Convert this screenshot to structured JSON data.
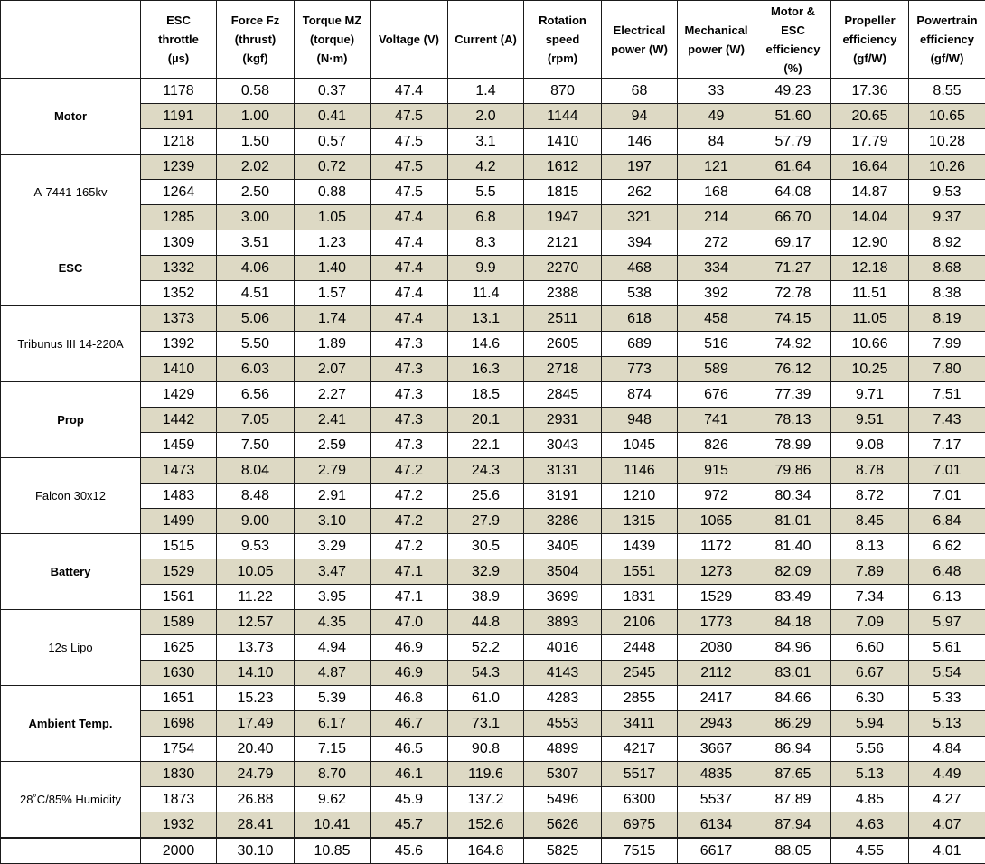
{
  "headers": [
    "",
    "ESC\nthrottle\n(µs)",
    "Force Fz\n(thrust)\n(kgf)",
    "Torque MZ\n(torque)\n(N·m)",
    "Voltage (V)",
    "Current (A)",
    "Rotation\nspeed\n(rpm)",
    "Electrical\npower (W)",
    "Mechanical\npower (W)",
    "Motor &\nESC\nefficiency\n(%)",
    "Propeller\nefficiency\n(gf/W)",
    "Powertrain\nefficiency\n(gf/W)"
  ],
  "groups": [
    {
      "label": "Motor",
      "bold": true
    },
    {
      "label": "A-7441-165kv",
      "bold": false
    },
    {
      "label": "ESC",
      "bold": true
    },
    {
      "label": "Tribunus III 14-220A",
      "bold": false
    },
    {
      "label": "Prop",
      "bold": true
    },
    {
      "label": "Falcon 30x12",
      "bold": false
    },
    {
      "label": "Battery",
      "bold": true
    },
    {
      "label": "12s Lipo",
      "bold": false
    },
    {
      "label": "Ambient Temp.",
      "bold": true
    },
    {
      "label": "28˚C/85% Humidity",
      "bold": false
    },
    {
      "label": "",
      "bold": false
    }
  ],
  "rows": [
    [
      "1178",
      "0.58",
      "0.37",
      "47.4",
      "1.4",
      "870",
      "68",
      "33",
      "49.23",
      "17.36",
      "8.55"
    ],
    [
      "1191",
      "1.00",
      "0.41",
      "47.5",
      "2.0",
      "1144",
      "94",
      "49",
      "51.60",
      "20.65",
      "10.65"
    ],
    [
      "1218",
      "1.50",
      "0.57",
      "47.5",
      "3.1",
      "1410",
      "146",
      "84",
      "57.79",
      "17.79",
      "10.28"
    ],
    [
      "1239",
      "2.02",
      "0.72",
      "47.5",
      "4.2",
      "1612",
      "197",
      "121",
      "61.64",
      "16.64",
      "10.26"
    ],
    [
      "1264",
      "2.50",
      "0.88",
      "47.5",
      "5.5",
      "1815",
      "262",
      "168",
      "64.08",
      "14.87",
      "9.53"
    ],
    [
      "1285",
      "3.00",
      "1.05",
      "47.4",
      "6.8",
      "1947",
      "321",
      "214",
      "66.70",
      "14.04",
      "9.37"
    ],
    [
      "1309",
      "3.51",
      "1.23",
      "47.4",
      "8.3",
      "2121",
      "394",
      "272",
      "69.17",
      "12.90",
      "8.92"
    ],
    [
      "1332",
      "4.06",
      "1.40",
      "47.4",
      "9.9",
      "2270",
      "468",
      "334",
      "71.27",
      "12.18",
      "8.68"
    ],
    [
      "1352",
      "4.51",
      "1.57",
      "47.4",
      "11.4",
      "2388",
      "538",
      "392",
      "72.78",
      "11.51",
      "8.38"
    ],
    [
      "1373",
      "5.06",
      "1.74",
      "47.4",
      "13.1",
      "2511",
      "618",
      "458",
      "74.15",
      "11.05",
      "8.19"
    ],
    [
      "1392",
      "5.50",
      "1.89",
      "47.3",
      "14.6",
      "2605",
      "689",
      "516",
      "74.92",
      "10.66",
      "7.99"
    ],
    [
      "1410",
      "6.03",
      "2.07",
      "47.3",
      "16.3",
      "2718",
      "773",
      "589",
      "76.12",
      "10.25",
      "7.80"
    ],
    [
      "1429",
      "6.56",
      "2.27",
      "47.3",
      "18.5",
      "2845",
      "874",
      "676",
      "77.39",
      "9.71",
      "7.51"
    ],
    [
      "1442",
      "7.05",
      "2.41",
      "47.3",
      "20.1",
      "2931",
      "948",
      "741",
      "78.13",
      "9.51",
      "7.43"
    ],
    [
      "1459",
      "7.50",
      "2.59",
      "47.3",
      "22.1",
      "3043",
      "1045",
      "826",
      "78.99",
      "9.08",
      "7.17"
    ],
    [
      "1473",
      "8.04",
      "2.79",
      "47.2",
      "24.3",
      "3131",
      "1146",
      "915",
      "79.86",
      "8.78",
      "7.01"
    ],
    [
      "1483",
      "8.48",
      "2.91",
      "47.2",
      "25.6",
      "3191",
      "1210",
      "972",
      "80.34",
      "8.72",
      "7.01"
    ],
    [
      "1499",
      "9.00",
      "3.10",
      "47.2",
      "27.9",
      "3286",
      "1315",
      "1065",
      "81.01",
      "8.45",
      "6.84"
    ],
    [
      "1515",
      "9.53",
      "3.29",
      "47.2",
      "30.5",
      "3405",
      "1439",
      "1172",
      "81.40",
      "8.13",
      "6.62"
    ],
    [
      "1529",
      "10.05",
      "3.47",
      "47.1",
      "32.9",
      "3504",
      "1551",
      "1273",
      "82.09",
      "7.89",
      "6.48"
    ],
    [
      "1561",
      "11.22",
      "3.95",
      "47.1",
      "38.9",
      "3699",
      "1831",
      "1529",
      "83.49",
      "7.34",
      "6.13"
    ],
    [
      "1589",
      "12.57",
      "4.35",
      "47.0",
      "44.8",
      "3893",
      "2106",
      "1773",
      "84.18",
      "7.09",
      "5.97"
    ],
    [
      "1625",
      "13.73",
      "4.94",
      "46.9",
      "52.2",
      "4016",
      "2448",
      "2080",
      "84.96",
      "6.60",
      "5.61"
    ],
    [
      "1630",
      "14.10",
      "4.87",
      "46.9",
      "54.3",
      "4143",
      "2545",
      "2112",
      "83.01",
      "6.67",
      "5.54"
    ],
    [
      "1651",
      "15.23",
      "5.39",
      "46.8",
      "61.0",
      "4283",
      "2855",
      "2417",
      "84.66",
      "6.30",
      "5.33"
    ],
    [
      "1698",
      "17.49",
      "6.17",
      "46.7",
      "73.1",
      "4553",
      "3411",
      "2943",
      "86.29",
      "5.94",
      "5.13"
    ],
    [
      "1754",
      "20.40",
      "7.15",
      "46.5",
      "90.8",
      "4899",
      "4217",
      "3667",
      "86.94",
      "5.56",
      "4.84"
    ],
    [
      "1830",
      "24.79",
      "8.70",
      "46.1",
      "119.6",
      "5307",
      "5517",
      "4835",
      "87.65",
      "5.13",
      "4.49"
    ],
    [
      "1873",
      "26.88",
      "9.62",
      "45.9",
      "137.2",
      "5496",
      "6300",
      "5537",
      "87.89",
      "4.85",
      "4.27"
    ],
    [
      "1932",
      "28.41",
      "10.41",
      "45.7",
      "152.6",
      "5626",
      "6975",
      "6134",
      "87.94",
      "4.63",
      "4.07"
    ],
    [
      "2000",
      "30.10",
      "10.85",
      "45.6",
      "164.8",
      "5825",
      "7515",
      "6617",
      "88.05",
      "4.55",
      "4.01"
    ]
  ],
  "colors": {
    "shade": "#ddd9c4",
    "border": "#1a1a1a"
  }
}
